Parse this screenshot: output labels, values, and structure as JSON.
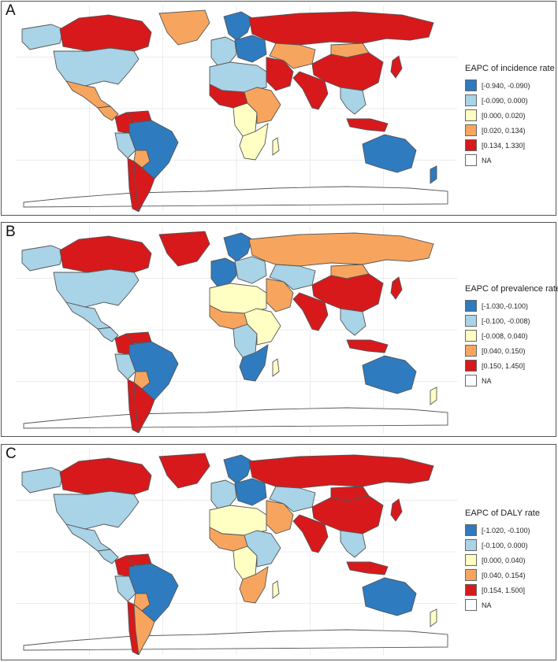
{
  "colors": {
    "c1": "#2f7bbf",
    "c2": "#a9d3e6",
    "c3": "#ffffc4",
    "c4": "#f7a55e",
    "c5": "#d7191c",
    "na": "#ffffff"
  },
  "panels": [
    {
      "letter": "A",
      "legend_title": "EAPC of incidence rate",
      "legend": [
        "[-0.940, -0.090)",
        "[-0.090, 0.000)",
        "[0.000, 0.020)",
        "[0.020, 0.134)",
        "[0.134, 1.330]",
        "NA"
      ],
      "regions": {
        "canada": "c5",
        "alaska": "c2",
        "usa": "c2",
        "mexico": "c4",
        "central_america": "c4",
        "greenland": "c4",
        "colombia": "c5",
        "venezuela": "c5",
        "brazil": "c1",
        "peru": "c2",
        "bolivia": "c4",
        "chile": "c5",
        "argentina": "c5",
        "russia": "c5",
        "nordic": "c1",
        "western_europe": "c2",
        "eastern_europe": "c1",
        "north_africa": "c2",
        "west_africa": "c5",
        "central_africa": "c3",
        "east_africa": "c4",
        "southern_africa": "c3",
        "middle_east": "c5",
        "central_asia": "c4",
        "china": "c5",
        "mongolia": "c4",
        "india": "c5",
        "southeast_asia": "c2",
        "indonesia": "c5",
        "japan": "c5",
        "australia": "c1",
        "new_zealand": "c1",
        "madagascar": "c3"
      }
    },
    {
      "letter": "B",
      "legend_title": "EAPC of prevalence rate",
      "legend": [
        "[-1.030,-0.100)",
        "[-0.100, -0.008)",
        "[-0.008, 0.040)",
        "[0.040, 0.150)",
        "[0.150, 1.450]",
        "NA"
      ],
      "regions": {
        "canada": "c5",
        "alaska": "c2",
        "usa": "c2",
        "mexico": "c2",
        "central_america": "c2",
        "greenland": "c5",
        "colombia": "c5",
        "venezuela": "c5",
        "brazil": "c1",
        "peru": "c2",
        "bolivia": "c4",
        "chile": "c5",
        "argentina": "c5",
        "russia": "c4",
        "nordic": "c1",
        "western_europe": "c1",
        "eastern_europe": "c2",
        "north_africa": "c3",
        "west_africa": "c4",
        "central_africa": "c2",
        "east_africa": "c3",
        "southern_africa": "c1",
        "middle_east": "c4",
        "central_asia": "c2",
        "china": "c5",
        "mongolia": "c4",
        "india": "c5",
        "southeast_asia": "c2",
        "indonesia": "c5",
        "japan": "c5",
        "australia": "c1",
        "new_zealand": "c3",
        "madagascar": "c3"
      }
    },
    {
      "letter": "C",
      "legend_title": "EAPC of DALY rate",
      "legend": [
        "[-1.020, -0.100)",
        "[-0.100, 0.000)",
        "[0.000, 0.040)",
        "[0.040, 0.154)",
        "[0.154, 1.500]",
        "NA"
      ],
      "regions": {
        "canada": "c5",
        "alaska": "c2",
        "usa": "c2",
        "mexico": "c2",
        "central_america": "c2",
        "greenland": "c5",
        "colombia": "c5",
        "venezuela": "c5",
        "brazil": "c1",
        "peru": "c2",
        "bolivia": "c4",
        "chile": "c5",
        "argentina": "c4",
        "russia": "c5",
        "nordic": "c1",
        "western_europe": "c2",
        "eastern_europe": "c1",
        "north_africa": "c3",
        "west_africa": "c4",
        "central_africa": "c3",
        "east_africa": "c2",
        "southern_africa": "c4",
        "middle_east": "c4",
        "central_asia": "c2",
        "china": "c5",
        "mongolia": "c5",
        "india": "c5",
        "southeast_asia": "c2",
        "indonesia": "c5",
        "japan": "c5",
        "australia": "c1",
        "new_zealand": "c3",
        "madagascar": "c3"
      }
    }
  ]
}
